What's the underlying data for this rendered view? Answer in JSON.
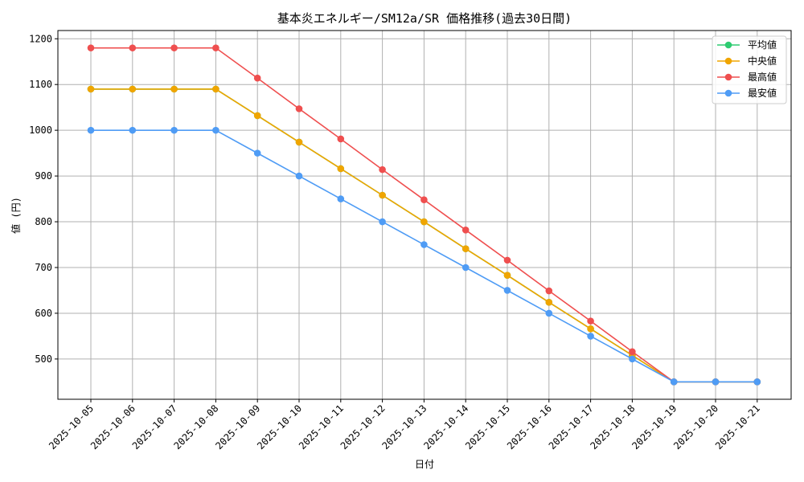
{
  "chart_data": {
    "type": "line",
    "title": "基本炎エネルギー/SM12a/SR 価格推移(過去30日間)",
    "xlabel": "日付",
    "ylabel": "値 (円)",
    "categories": [
      "2025-10-05",
      "2025-10-06",
      "2025-10-07",
      "2025-10-08",
      "2025-10-09",
      "2025-10-10",
      "2025-10-11",
      "2025-10-12",
      "2025-10-13",
      "2025-10-14",
      "2025-10-15",
      "2025-10-16",
      "2025-10-17",
      "2025-10-18",
      "2025-10-19",
      "2025-10-20",
      "2025-10-21"
    ],
    "ylim": [
      412,
      1218
    ],
    "yticks": [
      500,
      600,
      700,
      800,
      900,
      1000,
      1100,
      1200
    ],
    "grid": true,
    "legend_position": "top-right",
    "series": [
      {
        "name": "平均値",
        "color": "#2ecc71",
        "values": [
          1090,
          1090,
          1090,
          1090,
          1032,
          974,
          916,
          858,
          800,
          741,
          683,
          624,
          566,
          508,
          450,
          450,
          450
        ]
      },
      {
        "name": "中央値",
        "color": "#f0a500",
        "values": [
          1090,
          1090,
          1090,
          1090,
          1032,
          974,
          916,
          858,
          800,
          741,
          683,
          624,
          566,
          508,
          450,
          450,
          450
        ]
      },
      {
        "name": "最高値",
        "color": "#ef4f4f",
        "values": [
          1180,
          1180,
          1180,
          1180,
          1114,
          1047,
          981,
          914,
          848,
          782,
          716,
          649,
          583,
          516,
          450,
          450,
          450
        ]
      },
      {
        "name": "最安値",
        "color": "#4f9cf5",
        "values": [
          1000,
          1000,
          1000,
          1000,
          950,
          900,
          850,
          800,
          750,
          700,
          650,
          600,
          550,
          500,
          450,
          450,
          450
        ]
      }
    ]
  }
}
